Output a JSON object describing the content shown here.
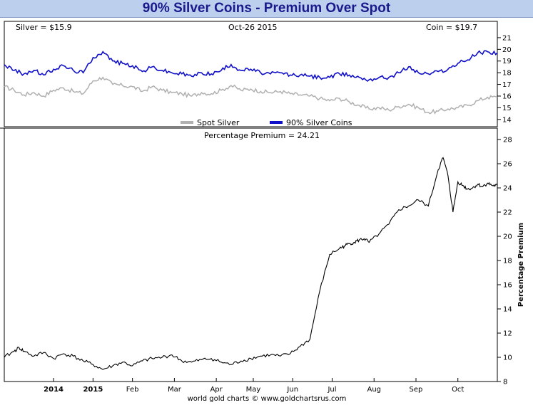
{
  "title": "90% Silver Coins - Premium Over Spot",
  "footer": "world gold charts © www.goldchartsrus.com",
  "colors": {
    "spot": "#b0b0b0",
    "coin": "#1010c8",
    "premium": "#000000",
    "title_bg": "#bcd0ee",
    "title_text": "#1a1a8c"
  },
  "chart_data": [
    {
      "type": "line",
      "header": {
        "left": "Silver = $15.9",
        "center": "Oct-26  2015",
        "right": "Coin = $19.7"
      },
      "ylim": [
        13.5,
        21.3
      ],
      "yticks": [
        "14",
        "15",
        "16",
        "17",
        "18",
        "19",
        "20",
        "21"
      ],
      "legend": [
        "Spot Silver",
        "90% Silver Coins"
      ],
      "legend_position": "bottom-center",
      "series": [
        {
          "name": "Spot Silver",
          "x": [
            0,
            2,
            4,
            6,
            8,
            10,
            12,
            14,
            16,
            18,
            20,
            22,
            24,
            26,
            28,
            30,
            32,
            34,
            36,
            38,
            40,
            42,
            44,
            46,
            48,
            50,
            52,
            54,
            56,
            58,
            60,
            62,
            64,
            66,
            68,
            70,
            72,
            74,
            76,
            78,
            80,
            82,
            84,
            86,
            88,
            90,
            92,
            94,
            96,
            98,
            100
          ],
          "values": [
            16.8,
            16.5,
            16.1,
            16.3,
            16.0,
            16.5,
            16.7,
            16.4,
            16.2,
            17.3,
            17.6,
            17.0,
            16.9,
            16.8,
            16.4,
            16.8,
            16.5,
            16.3,
            16.2,
            16.0,
            16.3,
            16.2,
            16.5,
            16.9,
            16.5,
            16.6,
            16.4,
            16.3,
            16.4,
            16.2,
            16.1,
            16.0,
            15.8,
            15.6,
            15.8,
            15.5,
            15.2,
            14.9,
            15.0,
            14.8,
            15.1,
            15.3,
            15.0,
            14.6,
            14.7,
            14.9,
            15.0,
            15.2,
            15.6,
            15.9,
            15.9
          ]
        },
        {
          "name": "90% Silver Coins",
          "x": [
            0,
            2,
            4,
            6,
            8,
            10,
            12,
            14,
            16,
            18,
            20,
            22,
            24,
            26,
            28,
            30,
            32,
            34,
            36,
            38,
            40,
            42,
            44,
            46,
            48,
            50,
            52,
            54,
            56,
            58,
            60,
            62,
            64,
            66,
            68,
            70,
            72,
            74,
            76,
            78,
            80,
            82,
            84,
            86,
            88,
            90,
            92,
            94,
            96,
            98,
            100
          ],
          "values": [
            18.7,
            18.2,
            17.9,
            18.2,
            17.8,
            18.3,
            18.6,
            18.2,
            18.0,
            19.3,
            19.8,
            19.0,
            18.8,
            18.6,
            18.1,
            18.5,
            18.2,
            18.0,
            17.9,
            17.7,
            18.0,
            17.9,
            18.2,
            18.7,
            18.2,
            18.3,
            18.0,
            17.9,
            18.0,
            17.8,
            17.8,
            17.7,
            17.6,
            17.6,
            17.9,
            17.8,
            17.6,
            17.4,
            17.6,
            17.6,
            18.0,
            18.5,
            18.0,
            17.9,
            18.1,
            18.3,
            18.8,
            19.1,
            19.7,
            19.8,
            19.7
          ]
        }
      ]
    },
    {
      "type": "line",
      "title": "Percentage Premium = 24.21",
      "ylabel": "Percentage Premium",
      "ylim": [
        8,
        28
      ],
      "yticks": [
        "8",
        "10",
        "12",
        "14",
        "16",
        "18",
        "20",
        "22",
        "24",
        "26",
        "28"
      ],
      "x_tick_labels": [
        "2014",
        "2015",
        "Feb",
        "Mar",
        "Apr",
        "May",
        "Jun",
        "Jul",
        "Aug",
        "Sep",
        "Oct"
      ],
      "series": [
        {
          "name": "",
          "x": [
            0,
            2,
            3,
            4,
            6,
            8,
            10,
            12,
            14,
            16,
            18,
            20,
            22,
            24,
            26,
            28,
            30,
            32,
            34,
            36,
            38,
            40,
            42,
            44,
            46,
            48,
            50,
            52,
            54,
            56,
            58,
            60,
            62,
            64,
            66,
            68,
            69,
            70,
            71,
            72,
            73,
            74,
            76,
            78,
            80,
            82,
            84,
            86,
            88,
            89,
            90,
            91,
            92,
            93,
            94,
            95,
            96,
            97,
            98,
            99,
            100
          ],
          "values": [
            10.0,
            10.5,
            10.8,
            10.5,
            10.1,
            10.4,
            9.9,
            10.3,
            10.1,
            9.7,
            9.4,
            9.0,
            9.3,
            9.6,
            9.3,
            9.7,
            9.9,
            10.0,
            10.2,
            9.7,
            9.6,
            9.8,
            9.9,
            9.6,
            9.4,
            9.7,
            9.9,
            10.1,
            10.2,
            10.1,
            10.3,
            10.9,
            11.5,
            15.5,
            18.5,
            19.0,
            19.2,
            19.4,
            19.5,
            19.7,
            19.8,
            19.5,
            20.2,
            21.0,
            22.2,
            22.5,
            23.0,
            22.5,
            25.5,
            26.5,
            25.0,
            22.0,
            24.5,
            24.2,
            23.9,
            24.0,
            24.3,
            24.1,
            24.4,
            24.2,
            24.2
          ]
        }
      ]
    }
  ]
}
